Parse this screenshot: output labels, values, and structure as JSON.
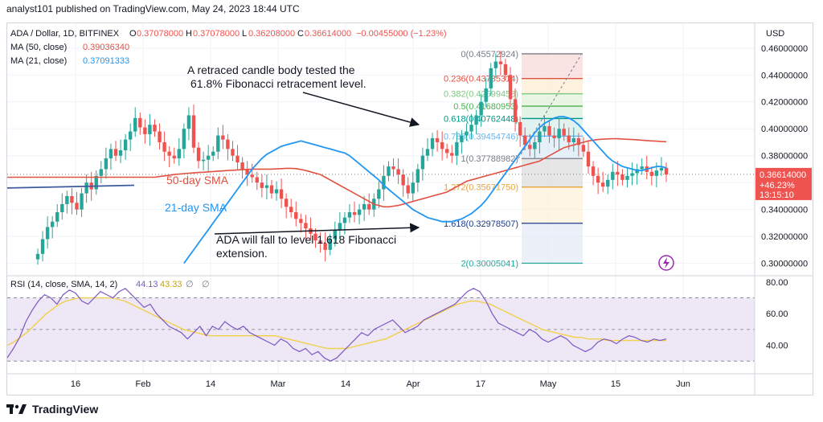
{
  "header": {
    "published": "analyst101 published on TradingView.com, May 24, 2023 18:44 UTC"
  },
  "footer": {
    "brand": "TradingView"
  },
  "colors": {
    "up": "#26a69a",
    "down": "#ef5350",
    "ma50": "#e15141",
    "ma21": "#2196f3",
    "rsi": "#7e57c2",
    "rsi_sma": "#f2d04a",
    "rsi_band": "#ede7f6",
    "fib_red": "#f8d7d7",
    "fib_green": "#d7efd9"
  },
  "legend": {
    "symbol": "ADA / Dollar, 1D, BITFINEX",
    "o_label": "O",
    "o_value": "0.37078000",
    "h_label": "H",
    "h_value": "0.37078000",
    "l_label": "L",
    "l_value": "0.36208000",
    "c_label": "C",
    "c_value": "0.36614000",
    "change": "−0.00455000 (−1.23%)",
    "ma50_label": "MA (50, close)",
    "ma50_value": "0.39036340",
    "ma21_label": "MA (21, close)",
    "ma21_value": "0.37091333"
  },
  "rsi_legend": {
    "label": "RSI (14, close, SMA, 14, 2)",
    "value": "44.13",
    "sma_value": "43.33",
    "empty1": "∅",
    "empty2": "∅"
  },
  "price_axis": {
    "currency": "USD",
    "ticks": [
      "0.46000000",
      "0.44000000",
      "0.42000000",
      "0.40000000",
      "0.38000000",
      "0.36000000",
      "0.34000000",
      "0.32000000",
      "0.30000000"
    ],
    "current_price": "0.36614000",
    "current_change": "+46.23%",
    "countdown": "13:15:10"
  },
  "rsi_axis": {
    "ticks": [
      "80.00",
      "60.00",
      "40.00"
    ]
  },
  "time_axis": {
    "ticks": [
      "16",
      "Feb",
      "14",
      "Mar",
      "14",
      "Apr",
      "17",
      "May",
      "15",
      "Jun"
    ]
  },
  "annotations": {
    "note1_line1": "A retraced candle body tested the",
    "note1_line2": "61.8% Fibonacci retracement level.",
    "ma50_label": "50-day SMA",
    "ma21_label": "21-day SMA",
    "note2_line1": "ADA will fall to level 1.618 Fibonacci",
    "note2_line2": "extension."
  },
  "fib_levels": [
    {
      "label": "0(0.45572924)",
      "color": "#787b86",
      "price": 0.45572924
    },
    {
      "label": "0.236(0.43735314)",
      "color": "#e15141",
      "price": 0.43735314
    },
    {
      "label": "0.382(0.42599458)",
      "color": "#81c784",
      "price": 0.42599458
    },
    {
      "label": "0.5(0.41680953)",
      "color": "#4caf50",
      "price": 0.41680953
    },
    {
      "label": "0.618(0.40762448)",
      "color": "#009688",
      "price": 0.40762448
    },
    {
      "label": "0.786(0.39454746)",
      "color": "#64b5f6",
      "price": 0.39454746
    },
    {
      "label": "1(0.37788982)",
      "color": "#787b86",
      "price": 0.37788982
    },
    {
      "label": "1.272(0.35671750)",
      "color": "#e6a23c",
      "price": 0.3567175
    },
    {
      "label": "1.618(0.32978507)",
      "color": "#1e3a8a",
      "price": 0.32978507
    },
    {
      "label": "2(0.30005041)",
      "color": "#26a69a",
      "price": 0.30005041
    }
  ],
  "chart_data": {
    "type": "candlestick",
    "x_ticks": [
      "16",
      "Feb",
      "14",
      "Mar",
      "14",
      "Apr",
      "17",
      "May",
      "15",
      "Jun"
    ],
    "ylim": [
      0.292,
      0.476
    ],
    "rsi_ylim": [
      25,
      82
    ],
    "rsi_bands": [
      70,
      30
    ],
    "closes": [
      0.307,
      0.318,
      0.327,
      0.331,
      0.338,
      0.344,
      0.35,
      0.345,
      0.34,
      0.352,
      0.36,
      0.355,
      0.365,
      0.37,
      0.378,
      0.385,
      0.38,
      0.384,
      0.392,
      0.398,
      0.408,
      0.401,
      0.396,
      0.403,
      0.398,
      0.39,
      0.383,
      0.38,
      0.378,
      0.385,
      0.4,
      0.41,
      0.386,
      0.376,
      0.377,
      0.38,
      0.383,
      0.395,
      0.392,
      0.385,
      0.38,
      0.375,
      0.37,
      0.366,
      0.364,
      0.36,
      0.356,
      0.358,
      0.352,
      0.355,
      0.348,
      0.342,
      0.338,
      0.333,
      0.33,
      0.326,
      0.322,
      0.317,
      0.315,
      0.31,
      0.318,
      0.325,
      0.33,
      0.334,
      0.338,
      0.336,
      0.34,
      0.344,
      0.34,
      0.348,
      0.355,
      0.365,
      0.372,
      0.37,
      0.366,
      0.358,
      0.352,
      0.36,
      0.37,
      0.38,
      0.385,
      0.393,
      0.39,
      0.385,
      0.382,
      0.38,
      0.39,
      0.395,
      0.398,
      0.403,
      0.41,
      0.42,
      0.43,
      0.445,
      0.45,
      0.448,
      0.44,
      0.422,
      0.405,
      0.395,
      0.388,
      0.385,
      0.39,
      0.398,
      0.402,
      0.395,
      0.393,
      0.4,
      0.395,
      0.39,
      0.393,
      0.388,
      0.383,
      0.372,
      0.365,
      0.36,
      0.357,
      0.362,
      0.368,
      0.366,
      0.362,
      0.365,
      0.367,
      0.37,
      0.372,
      0.368,
      0.365,
      0.369,
      0.371,
      0.366
    ],
    "ma50": [
      0.364,
      0.3645,
      0.365,
      0.3655,
      0.366,
      0.3663,
      0.3667,
      0.367,
      0.3672,
      0.3675,
      0.3677,
      0.368,
      0.3682,
      0.3685,
      0.3687,
      0.369,
      0.3692,
      0.3694,
      0.3696,
      0.3698,
      0.37,
      0.37,
      0.37,
      0.37,
      0.37,
      0.3702,
      0.3704,
      0.3706,
      0.3706,
      0.3704,
      0.3698,
      0.369,
      0.368,
      0.367,
      0.366,
      0.364,
      0.362,
      0.36,
      0.358,
      0.356,
      0.354,
      0.352,
      0.35,
      0.348,
      0.346,
      0.344,
      0.343,
      0.342,
      0.342,
      0.3425,
      0.343,
      0.344,
      0.345,
      0.346,
      0.347,
      0.348,
      0.349,
      0.35,
      0.351,
      0.352,
      0.353,
      0.355,
      0.357,
      0.359,
      0.361,
      0.362,
      0.363,
      0.364,
      0.365,
      0.366,
      0.367,
      0.368,
      0.369,
      0.37,
      0.371,
      0.372,
      0.373,
      0.374,
      0.375,
      0.376,
      0.378,
      0.38,
      0.382,
      0.384,
      0.386,
      0.387,
      0.388,
      0.389,
      0.39,
      0.391,
      0.3915,
      0.392,
      0.3923,
      0.3925,
      0.3926,
      0.3926,
      0.3924,
      0.3922,
      0.392,
      0.3918,
      0.3915,
      0.3912,
      0.391,
      0.3908,
      0.3905,
      0.3904
    ],
    "ma21": [
      0.3,
      0.305,
      0.31,
      0.315,
      0.32,
      0.325,
      0.33,
      0.335,
      0.34,
      0.345,
      0.35,
      0.355,
      0.36,
      0.365,
      0.37,
      0.374,
      0.378,
      0.381,
      0.383,
      0.385,
      0.387,
      0.388,
      0.389,
      0.39,
      0.391,
      0.39,
      0.389,
      0.388,
      0.387,
      0.386,
      0.385,
      0.384,
      0.383,
      0.382,
      0.38,
      0.377,
      0.374,
      0.371,
      0.368,
      0.365,
      0.362,
      0.358,
      0.355,
      0.352,
      0.349,
      0.346,
      0.343,
      0.34,
      0.338,
      0.336,
      0.334,
      0.333,
      0.332,
      0.331,
      0.331,
      0.331,
      0.332,
      0.333,
      0.335,
      0.337,
      0.34,
      0.343,
      0.347,
      0.352,
      0.357,
      0.362,
      0.367,
      0.372,
      0.377,
      0.382,
      0.387,
      0.392,
      0.397,
      0.401,
      0.404,
      0.406,
      0.408,
      0.409,
      0.409,
      0.408,
      0.406,
      0.403,
      0.399,
      0.395,
      0.391,
      0.387,
      0.383,
      0.379,
      0.376,
      0.374,
      0.372,
      0.371,
      0.37,
      0.369,
      0.369,
      0.37,
      0.371,
      0.372,
      0.372,
      0.371
    ],
    "rsi": [
      32,
      38,
      45,
      55,
      62,
      68,
      72,
      70,
      66,
      72,
      75,
      73,
      68,
      66,
      70,
      74,
      72,
      70,
      74,
      76,
      72,
      68,
      64,
      66,
      60,
      56,
      52,
      50,
      48,
      44,
      48,
      52,
      46,
      52,
      50,
      55,
      52,
      50,
      52,
      48,
      46,
      44,
      42,
      40,
      44,
      42,
      38,
      36,
      38,
      34,
      36,
      32,
      30,
      32,
      36,
      40,
      44,
      48,
      46,
      50,
      52,
      54,
      56,
      52,
      48,
      50,
      52,
      56,
      58,
      60,
      62,
      64,
      66,
      70,
      74,
      76,
      74,
      68,
      60,
      54,
      52,
      50,
      48,
      46,
      50,
      48,
      44,
      42,
      44,
      46,
      44,
      40,
      38,
      36,
      38,
      42,
      44,
      43,
      41,
      44,
      46,
      45,
      43,
      42,
      44,
      43,
      44
    ],
    "rsi_sma": [
      40,
      42,
      45,
      48,
      52,
      56,
      60,
      63,
      66,
      68,
      69,
      70,
      70,
      70,
      70,
      70,
      70,
      69,
      68,
      66,
      64,
      62,
      60,
      58,
      56,
      54,
      52,
      50,
      49,
      48,
      47,
      46,
      46,
      46,
      46,
      46,
      46,
      46,
      46,
      46,
      46,
      46,
      45,
      44,
      43,
      42,
      41,
      40,
      39,
      38,
      38,
      38,
      38,
      39,
      40,
      41,
      42,
      43,
      44,
      46,
      48,
      50,
      52,
      54,
      56,
      58,
      60,
      62,
      64,
      66,
      67,
      68,
      68,
      67,
      66,
      64,
      62,
      60,
      58,
      56,
      54,
      52,
      50,
      49,
      48,
      47,
      46,
      45,
      45,
      44,
      44,
      44,
      43,
      43,
      43,
      43,
      43,
      43,
      43,
      43,
      43,
      43
    ]
  }
}
